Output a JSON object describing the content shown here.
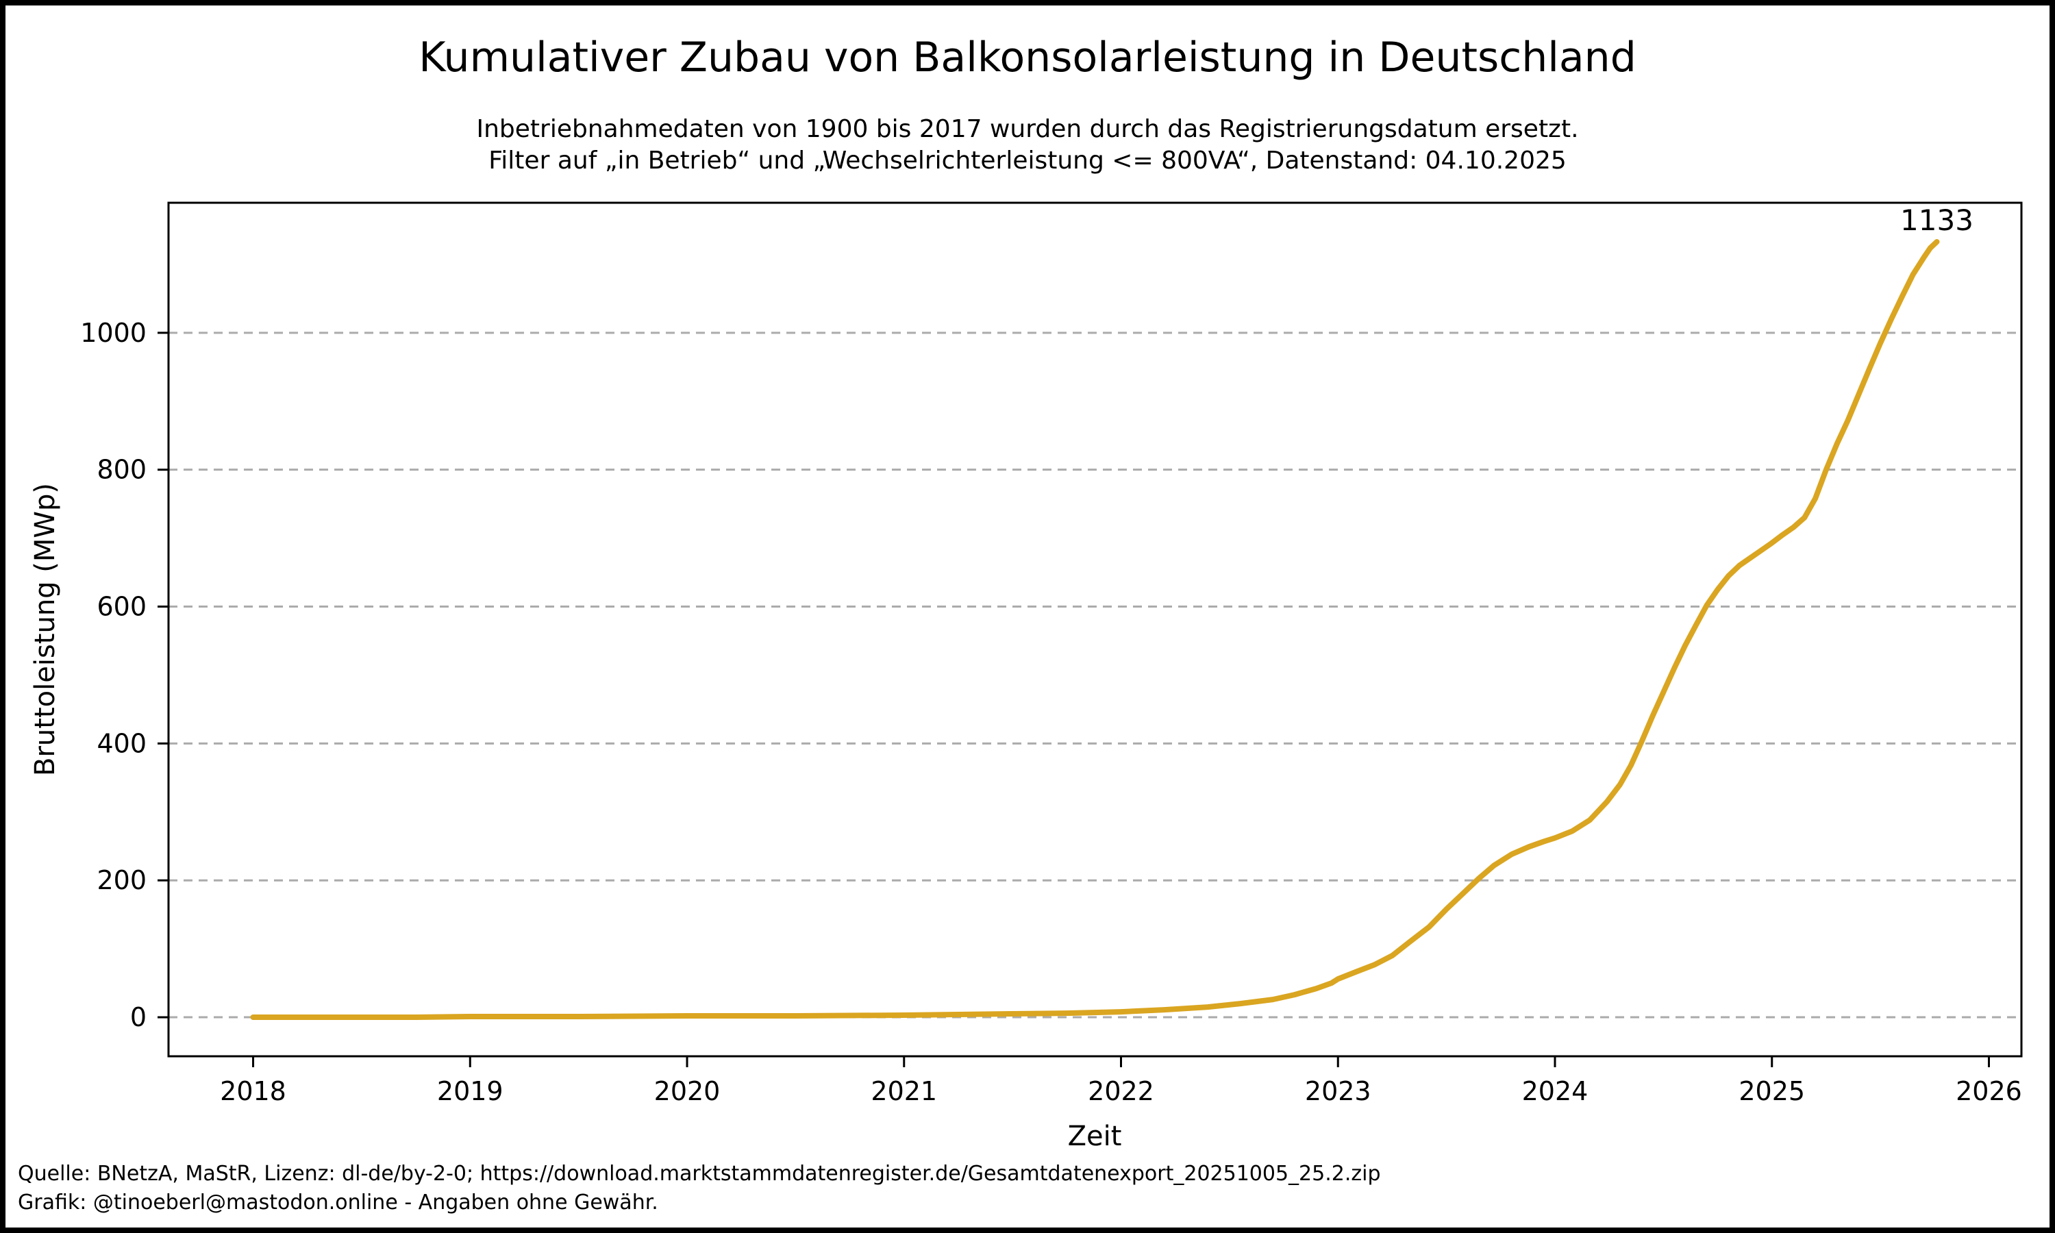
{
  "header": {
    "title": "Kumulativer Zubau von Balkonsolarleistung in Deutschland",
    "subtitle_line1": "Inbetriebnahmedaten von 1900 bis 2017 wurden durch das Registrierungsdatum ersetzt.",
    "subtitle_line2": "Filter auf „in Betrieb“ und „Wechselrichterleistung <= 800VA“, Datenstand: 04.10.2025"
  },
  "footer": {
    "line1": "Quelle: BNetzA, MaStR, Lizenz: dl-de/by-2-0; https://download.marktstammdatenregister.de/Gesamtdatenexport_20251005_25.2.zip",
    "line2": "Grafik: @tinoeberl@mastodon.online - Angaben ohne Gewähr."
  },
  "colors": {
    "line": "#DAA520",
    "grid": "#ABABAB",
    "axis": "#000000",
    "text": "#000000",
    "background": "#ffffff",
    "border": "#000000"
  },
  "chart_data": {
    "type": "line",
    "title": "Kumulativer Zubau von Balkonsolarleistung in Deutschland",
    "xlabel": "Zeit",
    "ylabel": "Bruttoleistung (MWp)",
    "x_ticks": [
      2018,
      2019,
      2020,
      2021,
      2022,
      2023,
      2024,
      2025,
      2026
    ],
    "y_ticks": [
      0,
      200,
      400,
      600,
      800,
      1000
    ],
    "xlim": [
      2017.61,
      2026.15
    ],
    "ylim": [
      -57,
      1190
    ],
    "grid": "horizontal-dashed",
    "legend": "none",
    "line_color": "#DAA520",
    "annotation": {
      "label": "1133",
      "x": 2025.76,
      "y": 1133
    },
    "series": [
      {
        "name": "Kumulative Bruttoleistung (MWp)",
        "points": [
          [
            2018.0,
            0
          ],
          [
            2018.25,
            0
          ],
          [
            2018.5,
            0
          ],
          [
            2018.75,
            0
          ],
          [
            2019.0,
            1
          ],
          [
            2019.5,
            1
          ],
          [
            2020.0,
            2
          ],
          [
            2020.5,
            2
          ],
          [
            2021.0,
            3
          ],
          [
            2021.25,
            4
          ],
          [
            2021.5,
            5
          ],
          [
            2021.75,
            6
          ],
          [
            2022.0,
            8
          ],
          [
            2022.2,
            11
          ],
          [
            2022.4,
            15
          ],
          [
            2022.55,
            20
          ],
          [
            2022.7,
            26
          ],
          [
            2022.8,
            33
          ],
          [
            2022.9,
            42
          ],
          [
            2022.97,
            50
          ],
          [
            2023.0,
            56
          ],
          [
            2023.08,
            66
          ],
          [
            2023.17,
            77
          ],
          [
            2023.25,
            90
          ],
          [
            2023.33,
            110
          ],
          [
            2023.42,
            132
          ],
          [
            2023.5,
            158
          ],
          [
            2023.58,
            182
          ],
          [
            2023.65,
            203
          ],
          [
            2023.72,
            222
          ],
          [
            2023.8,
            238
          ],
          [
            2023.88,
            249
          ],
          [
            2023.95,
            257
          ],
          [
            2024.0,
            262
          ],
          [
            2024.08,
            272
          ],
          [
            2024.16,
            288
          ],
          [
            2024.24,
            315
          ],
          [
            2024.3,
            340
          ],
          [
            2024.35,
            368
          ],
          [
            2024.4,
            403
          ],
          [
            2024.45,
            440
          ],
          [
            2024.5,
            475
          ],
          [
            2024.55,
            510
          ],
          [
            2024.6,
            543
          ],
          [
            2024.65,
            573
          ],
          [
            2024.7,
            602
          ],
          [
            2024.75,
            625
          ],
          [
            2024.8,
            645
          ],
          [
            2024.85,
            660
          ],
          [
            2024.9,
            671
          ],
          [
            2024.95,
            682
          ],
          [
            2025.0,
            693
          ],
          [
            2025.05,
            705
          ],
          [
            2025.1,
            716
          ],
          [
            2025.15,
            730
          ],
          [
            2025.2,
            758
          ],
          [
            2025.25,
            800
          ],
          [
            2025.3,
            838
          ],
          [
            2025.35,
            872
          ],
          [
            2025.4,
            910
          ],
          [
            2025.45,
            948
          ],
          [
            2025.5,
            985
          ],
          [
            2025.55,
            1020
          ],
          [
            2025.6,
            1053
          ],
          [
            2025.65,
            1085
          ],
          [
            2025.7,
            1110
          ],
          [
            2025.73,
            1124
          ],
          [
            2025.76,
            1133
          ]
        ]
      }
    ]
  }
}
